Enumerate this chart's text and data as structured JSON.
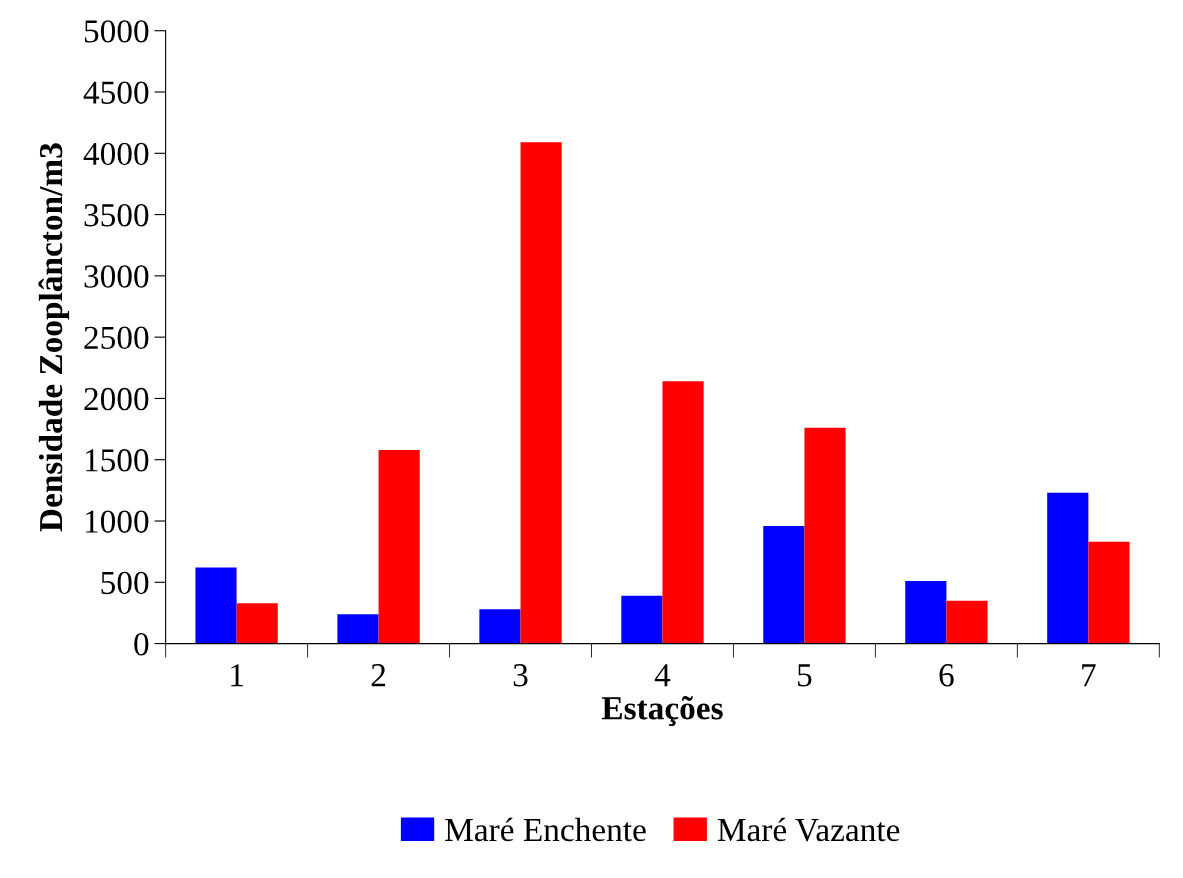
{
  "chart_data": {
    "type": "bar",
    "xlabel": "Estações",
    "ylabel": "Densidade Zooplâncton/m3",
    "categories": [
      "1",
      "2",
      "3",
      "4",
      "5",
      "6",
      "7"
    ],
    "series": [
      {
        "name": "Maré Enchente",
        "color": "#0000ff",
        "values": [
          620,
          240,
          280,
          390,
          960,
          510,
          1230
        ]
      },
      {
        "name": "Maré Vazante",
        "color": "#ff0000",
        "values": [
          330,
          1580,
          4090,
          2140,
          1760,
          350,
          830
        ]
      }
    ],
    "ylim": [
      0,
      5000
    ],
    "yticks": [
      0,
      500,
      1000,
      1500,
      2000,
      2500,
      3000,
      3500,
      4000,
      4500,
      5000
    ],
    "grid": false,
    "legend": "bottom"
  }
}
